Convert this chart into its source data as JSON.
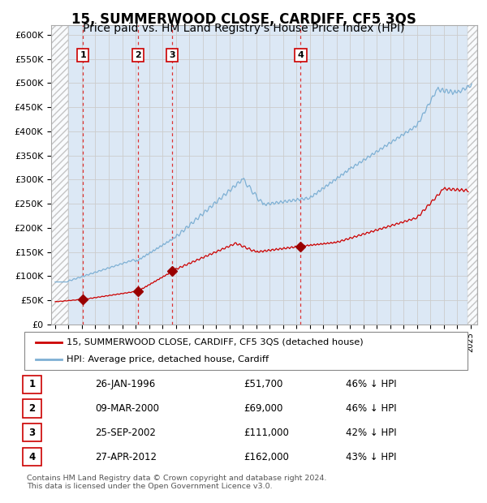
{
  "title": "15, SUMMERWOOD CLOSE, CARDIFF, CF5 3QS",
  "subtitle": "Price paid vs. HM Land Registry's House Price Index (HPI)",
  "title_fontsize": 12,
  "subtitle_fontsize": 10,
  "ylabel_ticks": [
    "£0",
    "£50K",
    "£100K",
    "£150K",
    "£200K",
    "£250K",
    "£300K",
    "£350K",
    "£400K",
    "£450K",
    "£500K",
    "£550K",
    "£600K"
  ],
  "ytick_vals": [
    0,
    50000,
    100000,
    150000,
    200000,
    250000,
    300000,
    350000,
    400000,
    450000,
    500000,
    550000,
    600000
  ],
  "ylim": [
    0,
    620000
  ],
  "xlim_start": 1993.7,
  "xlim_end": 2025.5,
  "hatch_end_year": 1995.0,
  "hatch_start_year2": 2024.75,
  "sale_dates": [
    1996.07,
    2000.19,
    2002.73,
    2012.32
  ],
  "sale_prices": [
    51700,
    69000,
    111000,
    162000
  ],
  "sale_labels": [
    "1",
    "2",
    "3",
    "4"
  ],
  "red_line_color": "#cc0000",
  "blue_line_color": "#7eb0d4",
  "marker_color": "#990000",
  "grid_color": "#cccccc",
  "vline_color": "#dd3333",
  "background_plot": "#dce8f5",
  "legend_label_red": "15, SUMMERWOOD CLOSE, CARDIFF, CF5 3QS (detached house)",
  "legend_label_blue": "HPI: Average price, detached house, Cardiff",
  "table_data": [
    [
      "1",
      "26-JAN-1996",
      "£51,700",
      "46% ↓ HPI"
    ],
    [
      "2",
      "09-MAR-2000",
      "£69,000",
      "46% ↓ HPI"
    ],
    [
      "3",
      "25-SEP-2002",
      "£111,000",
      "42% ↓ HPI"
    ],
    [
      "4",
      "27-APR-2012",
      "£162,000",
      "43% ↓ HPI"
    ]
  ],
  "footnote": "Contains HM Land Registry data © Crown copyright and database right 2024.\nThis data is licensed under the Open Government Licence v3.0."
}
